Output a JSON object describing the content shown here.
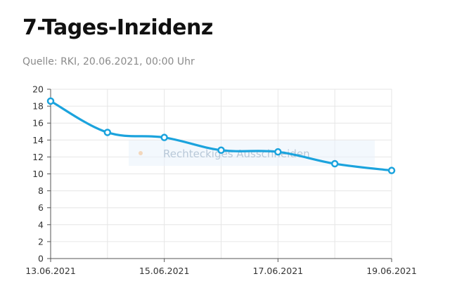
{
  "header": {
    "title": "7-Tages-Inzidenz",
    "source": "Quelle: RKI, 20.06.2021, 00:00 Uhr"
  },
  "overlay": {
    "label": "Rechteckiges Ausschneiden"
  },
  "colors": {
    "line": "#1ba3dd",
    "grid": "#e6e6e6",
    "axis": "#555555",
    "text": "#333333"
  },
  "chart_data": {
    "type": "line",
    "title": "7-Tages-Inzidenz",
    "x": [
      "13.06.2021",
      "14.06.2021",
      "15.06.2021",
      "16.06.2021",
      "17.06.2021",
      "18.06.2021",
      "19.06.2021"
    ],
    "x_tick_labels": [
      "13.06.2021",
      "15.06.2021",
      "17.06.2021",
      "19.06.2021"
    ],
    "series": [
      {
        "values": [
          18.6,
          14.9,
          14.3,
          12.8,
          12.6,
          11.2,
          10.4
        ]
      }
    ],
    "ylim": [
      0,
      20
    ],
    "y_ticks": [
      0,
      2,
      4,
      6,
      8,
      10,
      12,
      14,
      16,
      18,
      20
    ],
    "grid": true,
    "smooth": true,
    "markers": true
  }
}
